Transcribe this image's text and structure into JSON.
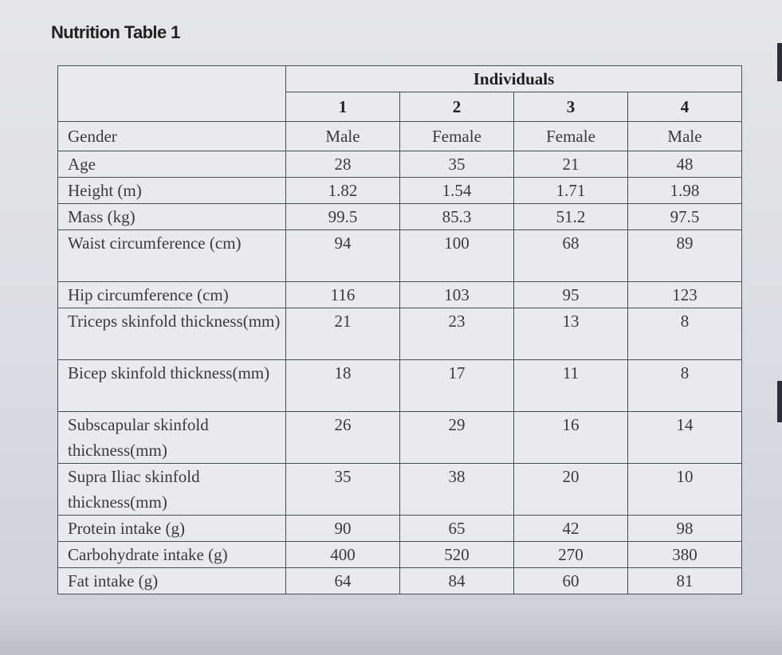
{
  "title": "Nutrition Table 1",
  "header": {
    "group": "Individuals",
    "individuals": [
      "1",
      "2",
      "3",
      "4"
    ]
  },
  "rows": [
    {
      "label": "Gender",
      "values": [
        "Male",
        "Female",
        "Female",
        "Male"
      ]
    },
    {
      "label": "Age",
      "values": [
        "28",
        "35",
        "21",
        "48"
      ]
    },
    {
      "label": "Height (m)",
      "values": [
        "1.82",
        "1.54",
        "1.71",
        "1.98"
      ]
    },
    {
      "label": "Mass (kg)",
      "values": [
        "99.5",
        "85.3",
        "51.2",
        "97.5"
      ]
    },
    {
      "label": "Waist circumference (cm)",
      "values": [
        "94",
        "100",
        "68",
        "89"
      ]
    },
    {
      "label": "Hip circumference (cm)",
      "values": [
        "116",
        "103",
        "95",
        "123"
      ]
    },
    {
      "label": "Triceps skinfold thickness(mm)",
      "values": [
        "21",
        "23",
        "13",
        "8"
      ]
    },
    {
      "label": "Bicep skinfold thickness(mm)",
      "values": [
        "18",
        "17",
        "11",
        "8"
      ]
    },
    {
      "label": "Subscapular skinfold thickness(mm)",
      "values": [
        "26",
        "29",
        "16",
        "14"
      ]
    },
    {
      "label": "Supra Iliac skinfold thickness(mm)",
      "values": [
        "35",
        "38",
        "20",
        "10"
      ]
    },
    {
      "label": "Protein intake (g)",
      "values": [
        "90",
        "65",
        "42",
        "98"
      ]
    },
    {
      "label": "Carbohydrate intake (g)",
      "values": [
        "400",
        "520",
        "270",
        "380"
      ]
    },
    {
      "label": "Fat intake (g)",
      "values": [
        "64",
        "84",
        "60",
        "81"
      ]
    }
  ]
}
